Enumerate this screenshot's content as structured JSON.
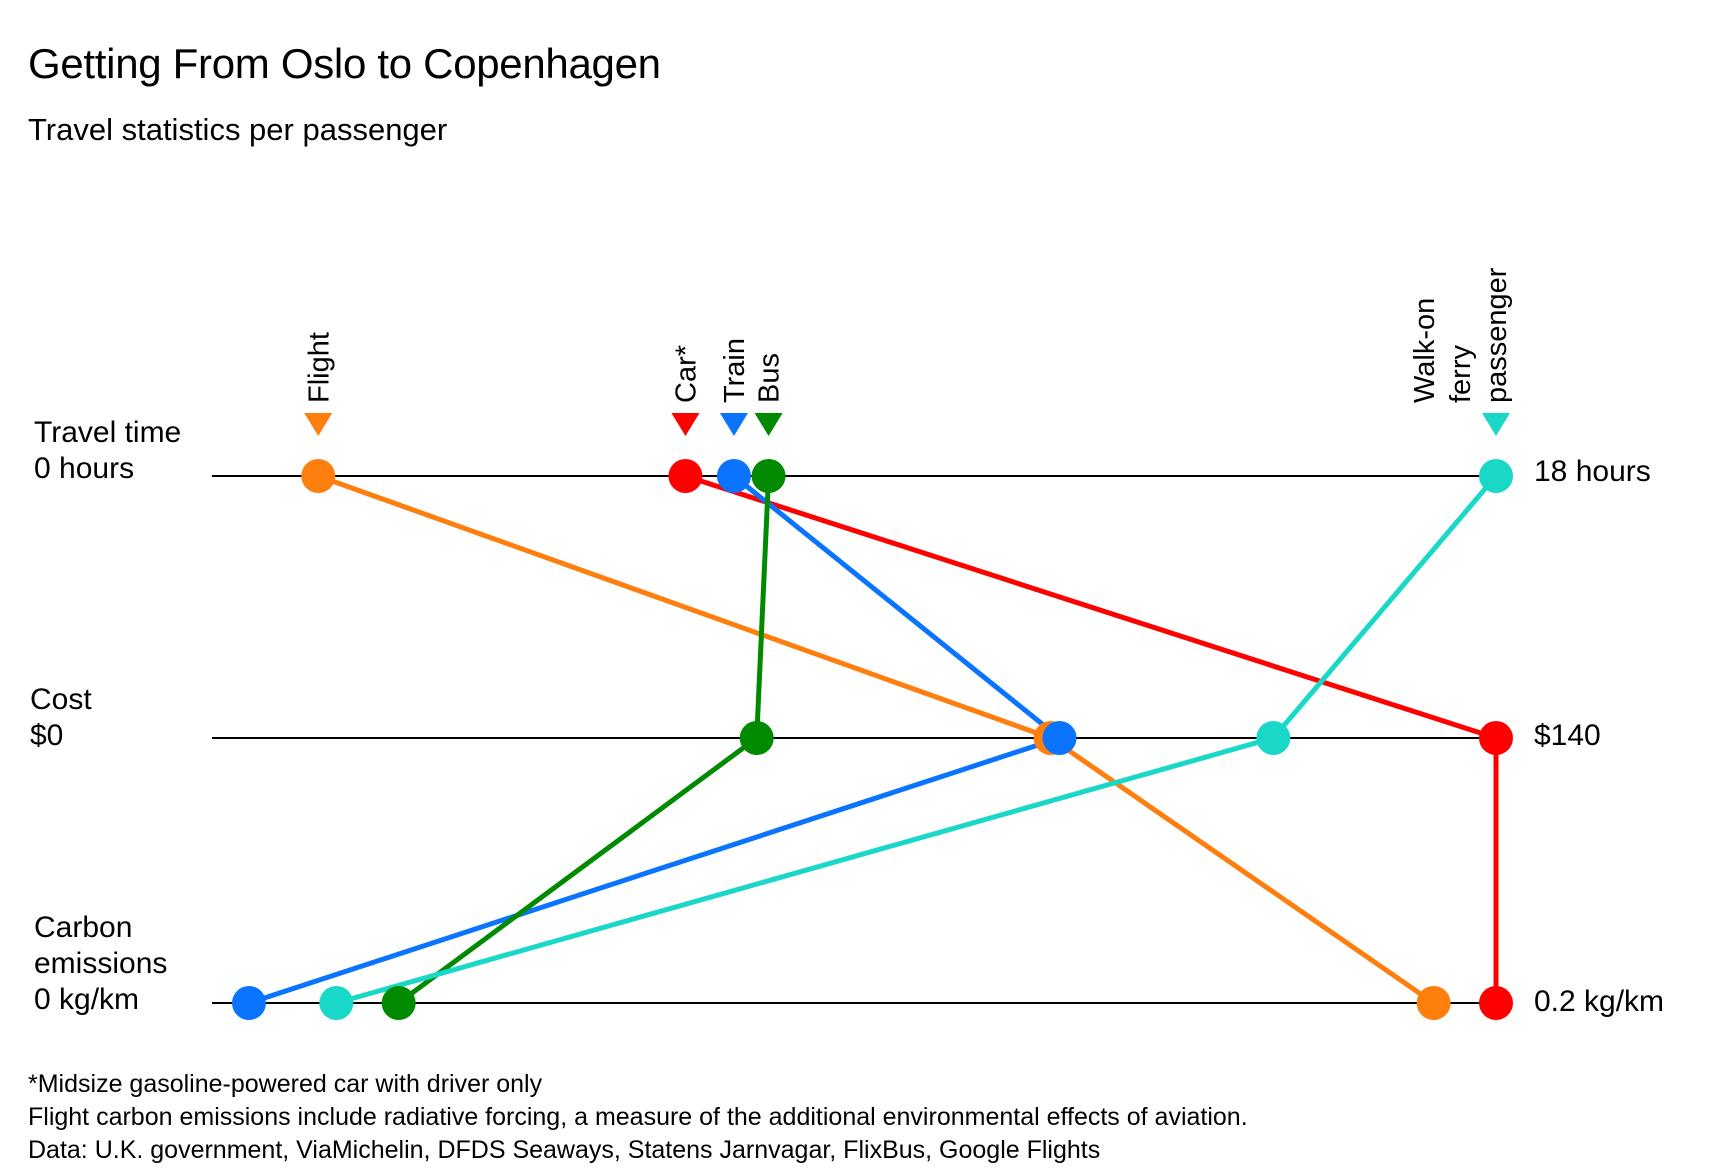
{
  "title": "Getting From Oslo to Copenhagen",
  "subtitle": "Travel statistics per passenger",
  "chart_data": {
    "type": "line",
    "title": "Getting From Oslo to Copenhagen",
    "subtitle": "Travel statistics per passenger",
    "axes": [
      {
        "key": "time",
        "label_lines": [
          "Travel time",
          "0 hours"
        ],
        "max_label": "18 hours",
        "min": 0,
        "max": 18,
        "unit": "hours"
      },
      {
        "key": "cost",
        "label_lines": [
          "Cost",
          "$0"
        ],
        "max_label": "$140",
        "min": 0,
        "max": 140,
        "unit": "$"
      },
      {
        "key": "carbon",
        "label_lines": [
          "Carbon",
          "emissions",
          "0 kg/km"
        ],
        "max_label": "0.2 kg/km",
        "min": 0,
        "max": 0.2,
        "unit": "kg/km"
      }
    ],
    "series": [
      {
        "name": "Flight",
        "name_lines": [
          "Flight"
        ],
        "color": "#FF7F0E",
        "values": {
          "time": 1,
          "cost": 90,
          "carbon": 0.19
        }
      },
      {
        "name": "Car*",
        "name_lines": [
          "Car*"
        ],
        "color": "#FF0000",
        "values": {
          "time": 6.3,
          "cost": 140,
          "carbon": 0.2
        }
      },
      {
        "name": "Train",
        "name_lines": [
          "Train"
        ],
        "color": "#0A74FF",
        "values": {
          "time": 7,
          "cost": 91,
          "carbon": 0.0
        }
      },
      {
        "name": "Bus",
        "name_lines": [
          "Bus"
        ],
        "color": "#008A00",
        "values": {
          "time": 7.5,
          "cost": 57,
          "carbon": 0.024
        }
      },
      {
        "name": "Walk-on ferry passenger",
        "name_lines": [
          "Walk-on",
          "ferry",
          "passenger"
        ],
        "color": "#19D8C8",
        "values": {
          "time": 18,
          "cost": 115,
          "carbon": 0.014
        }
      }
    ]
  },
  "footer": {
    "line1": "*Midsize gasoline-powered car with driver only",
    "line2": "Flight carbon emissions include radiative forcing, a measure of the additional environmental effects of aviation.",
    "line3": "Data: U.K. government, ViaMichelin, DFDS Seaways, Statens Jarnvagar, FlixBus, Google Flights"
  }
}
